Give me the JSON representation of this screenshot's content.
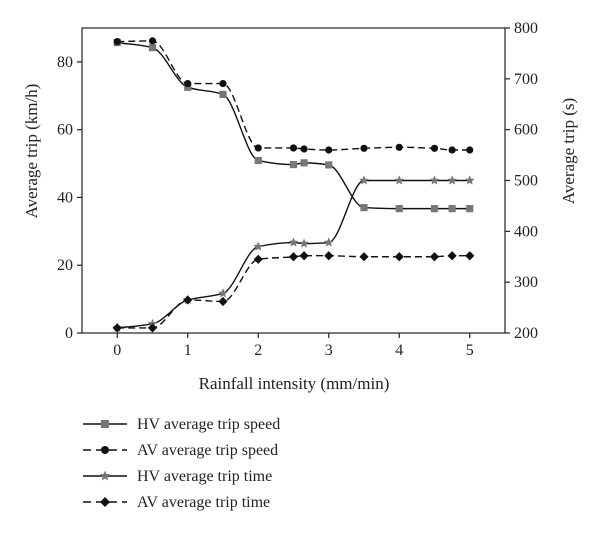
{
  "chart_data": {
    "type": "line",
    "xlabel": "Rainfall intensity (mm/min)",
    "ylabel_left": "Average trip (km/h)",
    "ylabel_right": "Average trip (s)",
    "xlim": [
      -0.5,
      5.5
    ],
    "ylim_left": [
      0,
      90
    ],
    "ylim_right": [
      200,
      800
    ],
    "x_ticks": [
      0,
      1,
      2,
      3,
      4,
      5
    ],
    "y_left_ticks": [
      0,
      20,
      40,
      60,
      80
    ],
    "y_right_ticks": [
      200,
      300,
      400,
      500,
      600,
      700,
      800
    ],
    "grid": false,
    "legend_position": "below",
    "series": [
      {
        "name": "HV average trip speed",
        "axis": "left",
        "line": "solid",
        "marker": "square",
        "marker_color": "#777777",
        "x": [
          0,
          0.5,
          1,
          1.5,
          2,
          2.5,
          2.65,
          3,
          3.5,
          4,
          4.5,
          4.75,
          5
        ],
        "y": [
          85.7,
          84.2,
          72.5,
          70.4,
          50.9,
          49.7,
          50.2,
          49.6,
          37.0,
          36.7,
          36.7,
          36.7,
          36.7
        ]
      },
      {
        "name": "AV average trip speed",
        "axis": "left",
        "line": "dashed",
        "marker": "circle",
        "marker_color": "#111111",
        "x": [
          0,
          0.5,
          1,
          1.5,
          2,
          2.5,
          2.65,
          3,
          3.5,
          4,
          4.5,
          4.75,
          5
        ],
        "y": [
          86.0,
          86.2,
          73.6,
          73.6,
          54.6,
          54.6,
          54.3,
          54.0,
          54.5,
          54.8,
          54.5,
          54.0,
          54.0
        ]
      },
      {
        "name": "HV average trip time",
        "axis": "right",
        "line": "solid",
        "marker": "star",
        "marker_color": "#777777",
        "x": [
          0,
          0.5,
          1,
          1.5,
          2,
          2.5,
          2.65,
          3,
          3.5,
          4,
          4.5,
          4.75,
          5
        ],
        "y": [
          210,
          218,
          265,
          278,
          370,
          378,
          376,
          378,
          500,
          500,
          500,
          500,
          500
        ]
      },
      {
        "name": "AV average trip time",
        "axis": "right",
        "line": "dashed",
        "marker": "diamond",
        "marker_color": "#111111",
        "x": [
          0,
          0.5,
          1,
          1.5,
          2,
          2.5,
          2.65,
          3,
          3.5,
          4,
          4.5,
          4.75,
          5
        ],
        "y": [
          210,
          210,
          265,
          262,
          345,
          350,
          352,
          352,
          350,
          350,
          350,
          352,
          352
        ]
      }
    ]
  }
}
